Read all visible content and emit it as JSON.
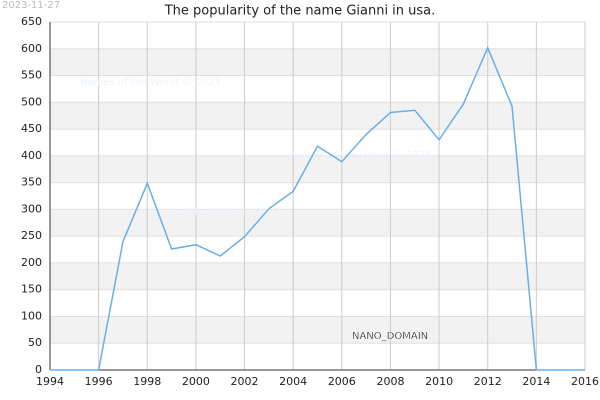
{
  "date_stamp": "2023-11-27",
  "chart_data": {
    "type": "line",
    "title": "The popularity of the name Gianni in usa.",
    "x": [
      1994,
      1995,
      1996,
      1997,
      1998,
      1999,
      2000,
      2001,
      2002,
      2003,
      2004,
      2005,
      2006,
      2007,
      2008,
      2009,
      2010,
      2011,
      2012,
      2013,
      2014,
      2015,
      2016
    ],
    "series": [
      {
        "name": "Gianni",
        "color": "#6aaee8",
        "values": [
          0,
          0,
          0,
          240,
          349,
          226,
          234,
          213,
          249,
          301,
          334,
          418,
          389,
          440,
          481,
          485,
          430,
          497,
          602,
          493,
          0,
          0,
          0
        ]
      }
    ],
    "xlim": [
      1994,
      2016
    ],
    "xticks": [
      1994,
      1996,
      1998,
      2000,
      2002,
      2004,
      2006,
      2008,
      2010,
      2012,
      2014,
      2016
    ],
    "ylim": [
      0,
      650
    ],
    "yticks": [
      0,
      50,
      100,
      150,
      200,
      250,
      300,
      350,
      400,
      450,
      500,
      550,
      600,
      650
    ],
    "grid": true,
    "watermarks": [
      "Names of the World © 2023",
      "Names of the World © 2023",
      "Names of the World © 2023"
    ],
    "stamp": "NANO_DOMAIN"
  }
}
